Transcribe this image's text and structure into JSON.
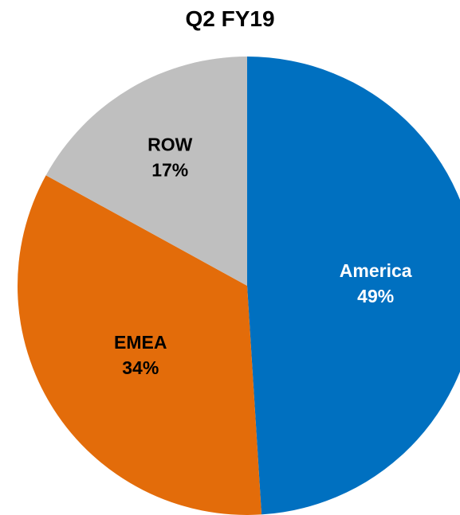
{
  "chart_data": {
    "type": "pie",
    "title": "Q2 FY19",
    "categories": [
      "America",
      "EMEA",
      "ROW"
    ],
    "values": [
      49,
      34,
      17
    ],
    "value_labels": [
      "49%",
      "34%",
      "17%"
    ],
    "colors": [
      "#0070C0",
      "#E36C0A",
      "#BFBFBF"
    ],
    "label_colors": [
      "#FFFFFF",
      "#000000",
      "#000000"
    ],
    "start": "12 o'clock",
    "direction": "clockwise"
  }
}
